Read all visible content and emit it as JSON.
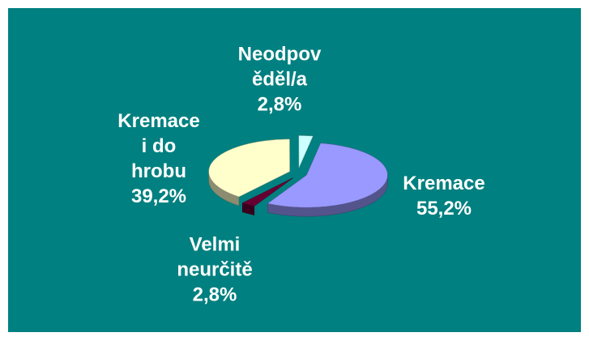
{
  "chart_data": {
    "type": "pie",
    "categories": [
      "Kremace",
      "Velmi\nneurčitě",
      "Kremace\ni do\nhrobu",
      "Neodpov\něděl/a"
    ],
    "values": [
      55.2,
      2.8,
      39.2,
      2.8
    ],
    "value_labels": [
      "55,2%",
      "2,8%",
      "39,2%",
      "2,8%"
    ],
    "colors": [
      "#9999ff",
      "#660033",
      "#ffffcc",
      "#ccffff"
    ]
  }
}
